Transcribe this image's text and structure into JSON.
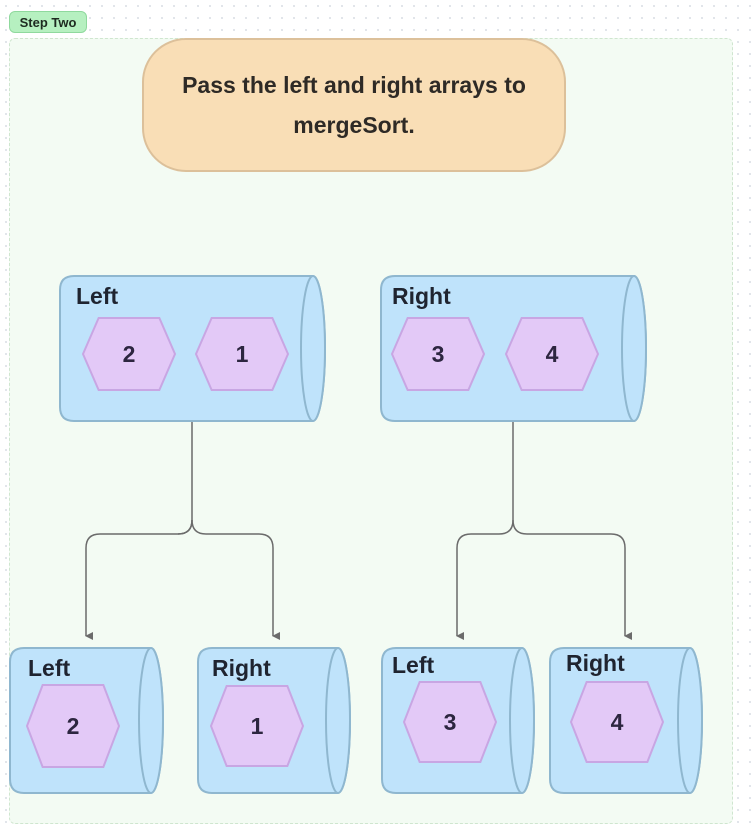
{
  "step_badge": "Step Two",
  "callout": "Pass the left and right arrays to mergeSort.",
  "colors": {
    "cylinder_fill": "#bfe3fb",
    "cylinder_stroke": "#8fb7cf",
    "hex_fill": "#e3c9f7",
    "hex_stroke": "#c8a6e3",
    "connector": "#6b6b6b",
    "callout_fill": "#f9deb6"
  },
  "arrays": {
    "top_left": {
      "label": "Left",
      "values": [
        "2",
        "1"
      ]
    },
    "top_right": {
      "label": "Right",
      "values": [
        "3",
        "4"
      ]
    },
    "bottom_1": {
      "label": "Left",
      "values": [
        "2"
      ]
    },
    "bottom_2": {
      "label": "Right",
      "values": [
        "1"
      ]
    },
    "bottom_3": {
      "label": "Left",
      "values": [
        "3"
      ]
    },
    "bottom_4": {
      "label": "Right",
      "values": [
        "4"
      ]
    }
  }
}
